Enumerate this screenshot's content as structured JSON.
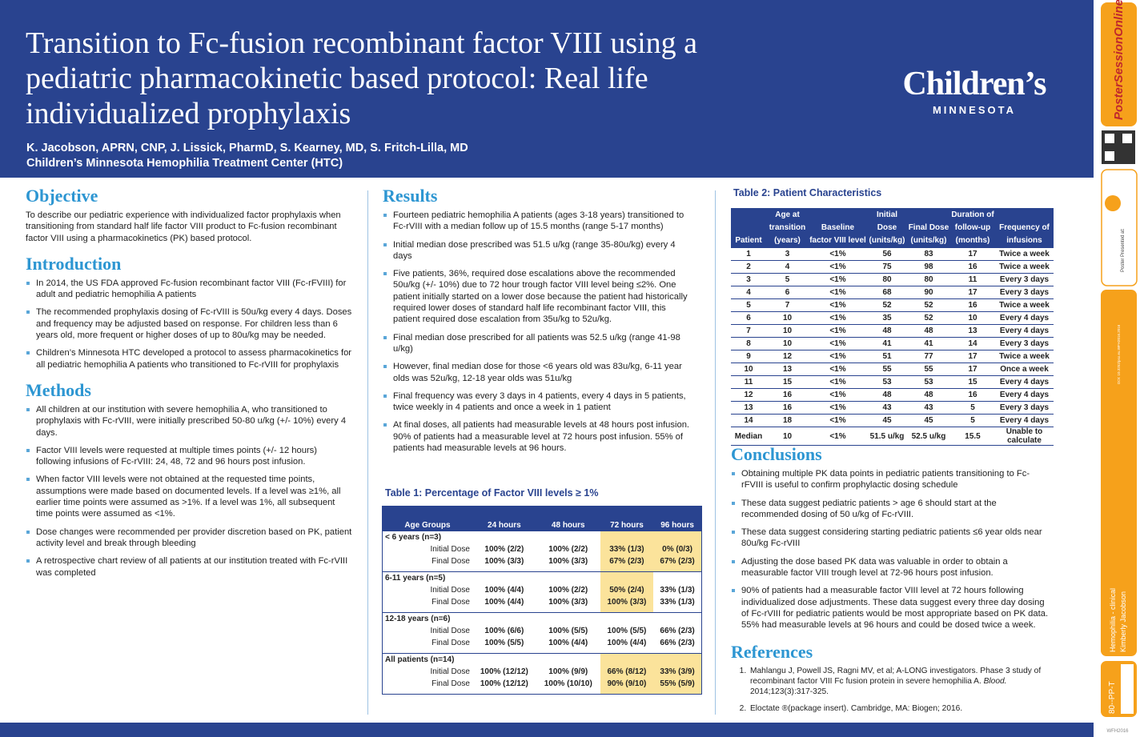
{
  "header": {
    "title": "Transition to Fc-fusion recombinant factor VIII using a pediatric pharmacokinetic based protocol: Real life individualized prophylaxis",
    "authors": "K. Jacobson, APRN, CNP, J. Lissick, PharmD, S. Kearney, MD, S. Fritch-Lilla, MD",
    "affiliation": "Children’s Minnesota Hemophilia Treatment Center (HTC)",
    "logo_name": "Children’s",
    "logo_sub": "MINNESOTA"
  },
  "objective": {
    "heading": "Objective",
    "text": "To describe our pediatric experience with individualized factor prophylaxis when transitioning from standard half life factor VIII product to Fc-fusion recombinant factor VIII using a pharmacokinetics (PK) based protocol."
  },
  "introduction": {
    "heading": "Introduction",
    "bullets": [
      "In 2014, the US FDA approved Fc-fusion recombinant factor VIII (Fc-rFVIII) for adult and pediatric hemophilia A patients",
      "The recommended prophylaxis dosing of Fc-rVIII is 50u/kg every 4 days. Doses and frequency may be adjusted based on response. For children less than 6 years old, more frequent or higher doses of up to 80u/kg may be needed.",
      "Children’s Minnesota HTC developed a protocol to assess pharmacokinetics for all pediatric hemophilia A patients who transitioned to Fc-rVIII for prophylaxis"
    ]
  },
  "methods": {
    "heading": "Methods",
    "bullets": [
      "All children at our institution with severe hemophilia A, who transitioned to prophylaxis with Fc-rVIII, were initially prescribed 50-80 u/kg (+/- 10%) every 4 days.",
      "Factor VIII levels were requested at multiple times points (+/- 12 hours) following infusions of Fc-rVIII: 24, 48, 72 and 96 hours post infusion.",
      "When factor VIII levels were not obtained at the requested time points, assumptions were made based on documented levels. If a level was ≥1%, all earlier time points were assumed as >1%. If a level was 1%, all subsequent time points were assumed as <1%.",
      "Dose changes were recommended per provider discretion based on PK, patient activity level and break through bleeding",
      "A retrospective chart review of all patients at our institution treated with Fc-rVIII was completed"
    ]
  },
  "results": {
    "heading": "Results",
    "bullets": [
      "Fourteen pediatric hemophilia A patients (ages 3-18 years) transitioned to Fc-rVIII with a median follow up of 15.5 months (range 5-17 months)",
      "Initial median dose prescribed was 51.5 u/kg (range 35-80u/kg) every 4 days",
      "Five patients, 36%, required dose escalations above the recommended 50u/kg (+/- 10%) due to 72 hour trough factor VIII level being ≤2%.  One patient initially started on a lower dose because the patient had historically required lower doses of standard half life recombinant factor VIII, this patient required dose escalation from 35u/kg to 52u/kg.",
      "Final median dose prescribed for all patients was 52.5 u/kg (range 41-98 u/kg)",
      "However, final median dose for those <6 years old was 83u/kg, 6-11 year olds was 52u/kg, 12-18 year olds was 51u/kg",
      "Final frequency was every 3 days in 4 patients, every 4 days in 5 patients, twice weekly in 4 patients and once a week in 1 patient",
      "At final doses, all patients had measurable levels at 48 hours post infusion. 90% of patients had a measurable level at 72 hours post infusion. 55% of patients had measurable levels at 96 hours."
    ]
  },
  "table1": {
    "caption": "Table 1: Percentage of Factor VIII levels ≥ 1%",
    "columns": [
      "Age Groups",
      "24 hours",
      "48 hours",
      "72 hours",
      "96 hours"
    ],
    "groups": [
      {
        "label": "< 6 years (n=3)",
        "rows": [
          {
            "label": "Initial Dose",
            "cells": [
              "100% (2/2)",
              "100% (2/2)",
              "33% (1/3)",
              "0% (0/3)"
            ]
          },
          {
            "label": "Final Dose",
            "cells": [
              "100% (3/3)",
              "100% (3/3)",
              "67% (2/3)",
              "67% (2/3)"
            ]
          }
        ]
      },
      {
        "label": "6-11 years (n=5)",
        "rows": [
          {
            "label": "Initial Dose",
            "cells": [
              "100% (4/4)",
              "100% (2/2)",
              "50% (2/4)",
              "33% (1/3)"
            ]
          },
          {
            "label": "Final Dose",
            "cells": [
              "100% (4/4)",
              "100% (3/3)",
              "100% (3/3)",
              "33% (1/3)"
            ]
          }
        ]
      },
      {
        "label": "12-18 years (n=6)",
        "rows": [
          {
            "label": "Initial Dose",
            "cells": [
              "100% (6/6)",
              "100% (5/5)",
              "100% (5/5)",
              "66% (2/3)"
            ]
          },
          {
            "label": "Final Dose",
            "cells": [
              "100% (5/5)",
              "100% (4/4)",
              "100% (4/4)",
              "66% (2/3)"
            ]
          }
        ]
      },
      {
        "label": "All patients (n=14)",
        "rows": [
          {
            "label": "Initial Dose",
            "cells": [
              "100% (12/12)",
              "100% (9/9)",
              "66% (8/12)",
              "33% (3/9)"
            ]
          },
          {
            "label": "Final Dose",
            "cells": [
              "100% (12/12)",
              "100% (10/10)",
              "90% (9/10)",
              "55% (5/9)"
            ]
          }
        ]
      }
    ]
  },
  "table2": {
    "caption": "Table 2: Patient Characteristics",
    "columns": [
      "Patient",
      "Age at transition (years)",
      "Baseline factor VIII level",
      "Initial Dose (units/kg)",
      "Final Dose (units/kg)",
      "Duration of follow-up (months)",
      "Frequency of infusions"
    ],
    "rows": [
      [
        1,
        3,
        "<1%",
        56,
        83,
        17,
        "Twice a week"
      ],
      [
        2,
        4,
        "<1%",
        75,
        98,
        16,
        "Twice a week"
      ],
      [
        3,
        5,
        "<1%",
        80,
        80,
        11,
        "Every 3 days"
      ],
      [
        4,
        6,
        "<1%",
        68,
        90,
        17,
        "Every 3 days"
      ],
      [
        5,
        7,
        "<1%",
        52,
        52,
        16,
        "Twice a week"
      ],
      [
        6,
        10,
        "<1%",
        35,
        52,
        10,
        "Every 4 days"
      ],
      [
        7,
        10,
        "<1%",
        48,
        48,
        13,
        "Every 4 days"
      ],
      [
        8,
        10,
        "<1%",
        41,
        41,
        14,
        "Every 3 days"
      ],
      [
        9,
        12,
        "<1%",
        51,
        77,
        17,
        "Twice a week"
      ],
      [
        10,
        13,
        "<1%",
        55,
        55,
        17,
        "Once a week"
      ],
      [
        11,
        15,
        "<1%",
        53,
        53,
        15,
        "Every 4 days"
      ],
      [
        12,
        16,
        "<1%",
        48,
        48,
        16,
        "Every 4 days"
      ],
      [
        13,
        16,
        "<1%",
        43,
        43,
        5,
        "Every 3 days"
      ],
      [
        14,
        18,
        "<1%",
        45,
        45,
        5,
        "Every 4 days"
      ],
      [
        "Median",
        10,
        "<1%",
        "51.5 u/kg",
        "52.5 u/kg",
        15.5,
        "Unable to calculate"
      ]
    ]
  },
  "conclusions": {
    "heading": "Conclusions",
    "bullets": [
      "Obtaining multiple PK data points in pediatric patients transitioning to Fc-rFVIII is useful to confirm prophylactic dosing schedule",
      "These data suggest pediatric patients > age 6 should start at the recommended dosing of 50 u/kg of Fc-rVIII.",
      "These data suggest considering starting pediatric patients ≤6 year olds near 80u/kg Fc-rVIII",
      "Adjusting the dose based PK data was valuable in order to obtain a measurable factor VIII trough level at 72-96 hours post infusion.",
      "90% of patients had a measurable factor VIII level at 72 hours following individualized dose adjustments.  These data suggest every three day dosing of Fc-rVIII for pediatric patients would be most appropriate based on PK data. 55% had measurable levels at 96 hours and could be dosed twice a week."
    ]
  },
  "references": {
    "heading": "References",
    "items": [
      {
        "pre": "Mahlangu J, Powell JS, Ragni MV, et al; A-LONG investigators. Phase 3 study of recombinant factor VIII Fc fusion protein in severe hemophilia A. ",
        "journal": "Blood.",
        "post": " 2014;123(3):317-325."
      },
      {
        "pre": "Eloctate ®(package insert). Cambridge, MA: Biogen; 2016."
      }
    ]
  },
  "sidebar": {
    "brand": "PosterSessionOnline.com",
    "presented": "Poster Presented at:",
    "doi": "DOI: 10.3252/pso.eu.WFH2016.2016",
    "topic": "Hemophilia - clinical",
    "author": "Kimberly Jacobson",
    "code": "80--PP-T",
    "event": "WFH2016"
  }
}
